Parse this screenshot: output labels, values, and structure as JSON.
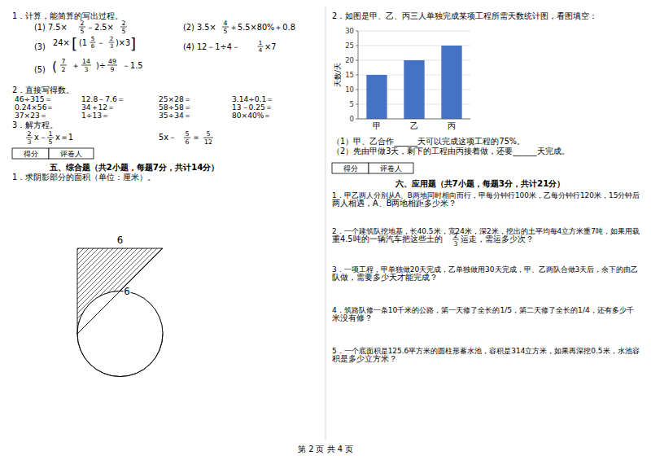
{
  "chart_data": {
    "type": "bar",
    "categories": [
      "甲",
      "乙",
      "丙"
    ],
    "values": [
      15,
      20,
      25
    ],
    "color": "#4472c4",
    "ylabel": "天数/天",
    "ylim": [
      0,
      30
    ],
    "yticks": [
      0,
      5,
      10,
      15,
      20,
      25,
      30
    ],
    "grid": true,
    "annotations": [
      "1．计算，能简算的写出过程。",
      "(1)  7.5×",
      "2",
      "5",
      "－2.5×",
      "2",
      "5",
      "(2)  3.5×",
      "4",
      "5",
      "＋5.5×80%＋0.8",
      "(3)",
      "24×",
      "[",
      "(1",
      "5",
      "6",
      "－",
      "2",
      "3",
      ")×3",
      "]",
      "(4)  12－1÷4－",
      "1",
      "4",
      "×7",
      "(5)",
      "(",
      "7",
      "2",
      "＋",
      "14",
      "3",
      ")÷",
      "49",
      "9",
      "－1.5",
      "2．直接写得数。",
      "46÷315＝",
      "12.8－7.6＝",
      "25×28＝",
      "3.14÷0.1＝",
      "0.24×56＝",
      "34＋12＝",
      "58÷58＝",
      "13－0.25＝",
      "37×23＝",
      "1÷13＝",
      "35÷34＝",
      "80×40%＝",
      "3．解方程。",
      "2",
      "3",
      "x－",
      "1",
      "5",
      "x＝1",
      "5x－",
      "5",
      "6",
      "＝",
      "5",
      "12",
      "得分",
      "评卷人",
      "五、综合题（共2小题，每题7分，共计14分）",
      "1．求阴影部分的面积（单位：厘米）。",
      "6",
      "6",
      "2．如图是甲、乙、丙三人单独完成某项工程所需天数统计图，看图填空：",
      "（1）甲、乙合作______天可以完成这项工程的75%。",
      "（2）先由甲做3天，剩下的工程由丙接着做，还要______天完成。",
      "得分",
      "评卷人",
      "六、应用题（共7小题，每题3分，共计21分）",
      "1．甲乙两人分别从A、B两地同时相向而行，甲每分钟行100米，乙每分钟行120米，15分钟后",
      "两人相遇，A、B两地相距多少米？",
      "2．一个建筑队挖地基，长40.5米，宽24米，深2米，挖出的土平均每4立方米重7吨，如果用载",
      "重4.5吨的一辆汽车把这些土的",
      "2",
      "3",
      "运走，需运多少次？",
      "3．一项工程，甲单独做20天完成，乙单独做用30天完成，甲、乙两队合做3天后，余下的由乙",
      "队做，需要多少天才能完成？",
      "4．筑路队修一条10千米的公路，第一天修了全长的1/5，第二天修了全长的1/4，还有多少千",
      "米没有修？",
      "5．一个底面积是125.6平方米的圆柱形蓄水池，容积是314立方米，如果再深挖0.5米，水池容",
      "积是多少立方米？",
      "第 2 页  共 4 页"
    ]
  }
}
